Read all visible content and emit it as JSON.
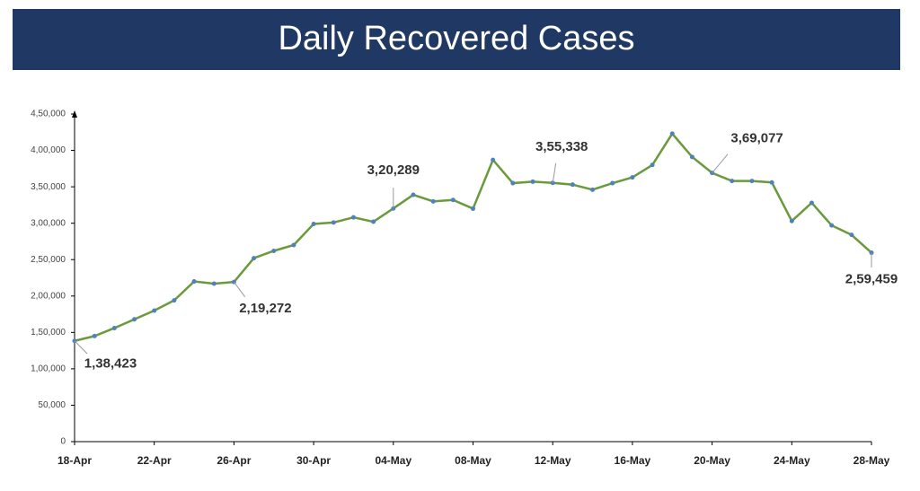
{
  "chart_data": {
    "type": "line",
    "title": "Daily Recovered Cases",
    "categories": [
      "18-Apr",
      null,
      null,
      null,
      "22-Apr",
      null,
      null,
      null,
      "26-Apr",
      null,
      null,
      null,
      "30-Apr",
      null,
      null,
      null,
      "04-May",
      null,
      null,
      null,
      "08-May",
      null,
      null,
      null,
      "12-May",
      null,
      null,
      null,
      "16-May",
      null,
      null,
      null,
      "20-May",
      null,
      null,
      null,
      "24-May",
      null,
      null,
      null,
      "28-May"
    ],
    "series": [
      {
        "name": "Daily Recovered Cases",
        "color": "#6b9a3c",
        "marker_color": "#4f81bd",
        "values": [
          138423,
          145000,
          156000,
          168000,
          180000,
          194000,
          220000,
          217000,
          219272,
          252000,
          262000,
          270000,
          299000,
          301000,
          308000,
          302000,
          320289,
          339000,
          330000,
          332000,
          320000,
          387000,
          355000,
          357000,
          355338,
          353000,
          346000,
          355000,
          363000,
          380000,
          423000,
          391000,
          369077,
          358000,
          358000,
          356000,
          303000,
          328000,
          297000,
          284000,
          259459
        ],
        "value_labels": [
          "1,38,423",
          null,
          null,
          null,
          null,
          null,
          null,
          null,
          "2,19,272",
          null,
          null,
          null,
          null,
          null,
          null,
          null,
          "3,20,289",
          null,
          null,
          null,
          null,
          null,
          null,
          null,
          "3,55,338",
          null,
          null,
          null,
          null,
          null,
          null,
          null,
          "3,69,077",
          null,
          null,
          null,
          null,
          null,
          null,
          null,
          "2,59,459"
        ]
      }
    ],
    "ylim": [
      0,
      450000
    ],
    "yticks": [
      0,
      {
        "value": 50000,
        "label": "50,000"
      },
      {
        "value": 100000,
        "label": "1,00,000"
      },
      {
        "value": 150000,
        "label": "1,50,000"
      },
      {
        "value": 200000,
        "label": "2,00,000"
      },
      {
        "value": 250000,
        "label": "2,50,000"
      },
      {
        "value": 300000,
        "label": "3,00,000"
      },
      {
        "value": 350000,
        "label": "3,50,000"
      },
      {
        "value": 400000,
        "label": "4,00,000"
      },
      {
        "value": 450000,
        "label": "4,50,000"
      }
    ],
    "grid": false
  }
}
